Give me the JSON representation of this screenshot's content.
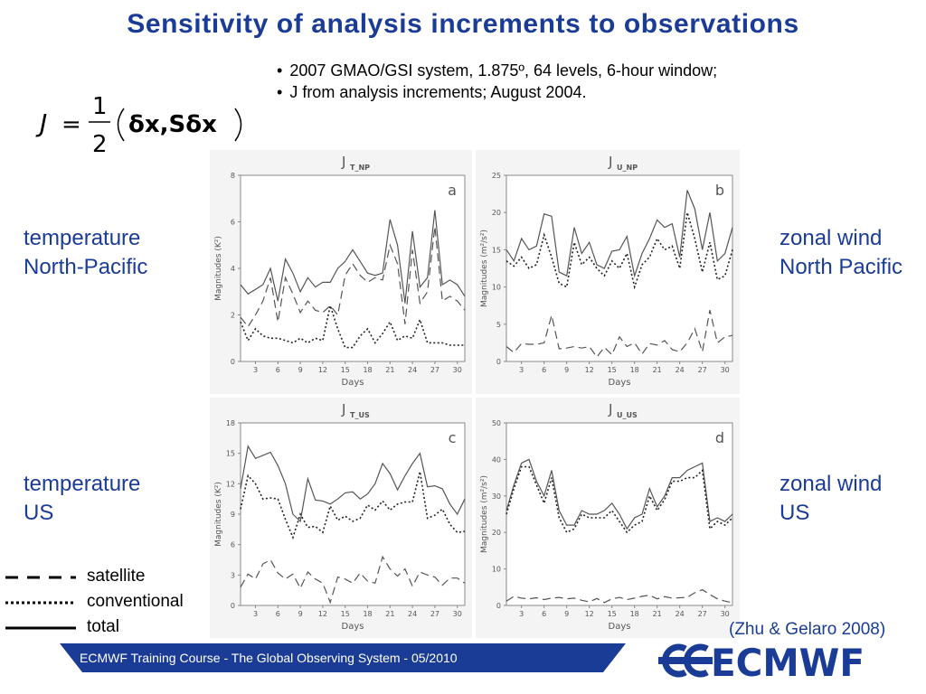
{
  "slide": {
    "title": "Sensitivity of analysis increments to observations",
    "bullets": [
      "2007 GMAO/GSI system, 1.875º, 64 levels, 6-hour window;",
      "J from analysis increments; August 2004."
    ],
    "formula": {
      "lhs": "J",
      "eq": "=",
      "num": "1",
      "den": "2",
      "body": "δx,Sδx"
    },
    "labels": {
      "temp_np": [
        "temperature",
        "North-Pacific"
      ],
      "wind_np": [
        "zonal wind",
        "North Pacific"
      ],
      "temp_us": [
        "temperature",
        "US"
      ],
      "wind_us": [
        "zonal wind",
        "US"
      ]
    },
    "legend": [
      "satellite",
      "conventional",
      "total"
    ],
    "citation": "(Zhu & Gelaro 2008)",
    "footer": "ECMWF Training Course - The Global Observing System - 05/2010",
    "logo_text": "ECMWF",
    "colors": {
      "accent": "#1a3c96",
      "plot_bg": "#f4f4f4",
      "line": "#555555"
    }
  },
  "chart_data": [
    {
      "type": "line",
      "panel": "a",
      "title": "J",
      "title_sub": "T_NP",
      "xlabel": "Days",
      "ylabel": "Magnitudes (K²)",
      "xlim": [
        1,
        31
      ],
      "ylim": [
        0,
        8
      ],
      "xticks": [
        3,
        6,
        9,
        12,
        15,
        18,
        21,
        24,
        27,
        30
      ],
      "yticks": [
        0,
        2,
        4,
        6,
        8
      ],
      "x": [
        1,
        2,
        3,
        4,
        5,
        6,
        7,
        8,
        9,
        10,
        11,
        12,
        13,
        14,
        15,
        16,
        17,
        18,
        19,
        20,
        21,
        22,
        23,
        24,
        25,
        26,
        27,
        28,
        29,
        30,
        31
      ],
      "series": [
        {
          "name": "total",
          "values": [
            3.3,
            2.9,
            3.1,
            3.3,
            4.0,
            2.6,
            4.4,
            3.8,
            3.0,
            3.6,
            3.2,
            3.4,
            3.4,
            4.0,
            4.3,
            4.8,
            4.3,
            3.8,
            3.7,
            3.8,
            6.1,
            5.0,
            2.5,
            5.6,
            3.2,
            3.6,
            6.5,
            3.3,
            3.5,
            3.3,
            2.8
          ]
        },
        {
          "name": "satellite",
          "values": [
            1.9,
            1.5,
            2.0,
            2.6,
            3.6,
            1.7,
            3.6,
            2.9,
            2.1,
            2.6,
            2.2,
            2.1,
            2.4,
            2.0,
            3.7,
            4.2,
            3.7,
            3.4,
            3.6,
            3.5,
            5.0,
            4.2,
            1.6,
            4.8,
            2.5,
            3.0,
            5.8,
            2.6,
            2.8,
            2.6,
            2.2
          ]
        },
        {
          "name": "conventional",
          "values": [
            1.7,
            0.9,
            1.4,
            1.1,
            1.0,
            1.0,
            0.9,
            0.8,
            1.0,
            0.8,
            1.0,
            0.9,
            2.4,
            1.4,
            0.6,
            0.6,
            1.1,
            1.4,
            0.8,
            1.2,
            1.7,
            0.9,
            1.1,
            1.0,
            1.8,
            0.8,
            0.8,
            0.8,
            0.7,
            0.7,
            0.7
          ]
        }
      ]
    },
    {
      "type": "line",
      "panel": "b",
      "title": "J",
      "title_sub": "U_NP",
      "xlabel": "Days",
      "ylabel": "Magnitudes (m²/s²)",
      "xlim": [
        1,
        31
      ],
      "ylim": [
        0,
        25
      ],
      "xticks": [
        3,
        6,
        9,
        12,
        15,
        18,
        21,
        24,
        27,
        30
      ],
      "yticks": [
        0,
        5,
        10,
        15,
        20,
        25
      ],
      "x": [
        1,
        2,
        3,
        4,
        5,
        6,
        7,
        8,
        9,
        10,
        11,
        12,
        13,
        14,
        15,
        16,
        17,
        18,
        19,
        20,
        21,
        22,
        23,
        24,
        25,
        26,
        27,
        28,
        29,
        30,
        31
      ],
      "series": [
        {
          "name": "total",
          "values": [
            15.0,
            13.5,
            16.5,
            15.0,
            15.5,
            19.8,
            19.5,
            12.0,
            11.5,
            18.0,
            14.5,
            16.0,
            13.0,
            12.5,
            14.8,
            15.0,
            16.8,
            11.5,
            14.5,
            16.5,
            19.0,
            18.0,
            18.5,
            14.0,
            23.0,
            20.5,
            15.0,
            20.0,
            13.5,
            14.5,
            18.0
          ]
        },
        {
          "name": "conventional",
          "values": [
            13.5,
            12.8,
            14.0,
            12.5,
            13.0,
            17.0,
            14.0,
            10.5,
            10.0,
            16.0,
            13.0,
            14.0,
            12.5,
            11.5,
            13.5,
            12.5,
            14.5,
            10.0,
            13.0,
            14.0,
            16.5,
            15.0,
            15.5,
            12.5,
            20.0,
            16.5,
            12.0,
            16.0,
            11.0,
            11.5,
            15.0
          ]
        },
        {
          "name": "satellite",
          "values": [
            2.0,
            1.2,
            2.4,
            2.3,
            2.3,
            2.5,
            6.2,
            1.7,
            1.8,
            2.0,
            1.8,
            2.0,
            0.6,
            1.9,
            0.9,
            3.3,
            2.0,
            2.5,
            1.0,
            2.4,
            2.2,
            2.8,
            1.6,
            1.3,
            2.5,
            4.4,
            1.3,
            6.9,
            2.5,
            3.3,
            3.5
          ]
        }
      ]
    },
    {
      "type": "line",
      "panel": "c",
      "title": "J",
      "title_sub": "T_US",
      "xlabel": "Days",
      "ylabel": "Magnitudes (K²)",
      "xlim": [
        1,
        31
      ],
      "ylim": [
        0,
        18
      ],
      "xticks": [
        3,
        6,
        9,
        12,
        15,
        18,
        21,
        24,
        27,
        30
      ],
      "yticks": [
        0,
        3,
        6,
        9,
        12,
        15,
        18
      ],
      "x": [
        1,
        2,
        3,
        4,
        5,
        6,
        7,
        8,
        9,
        10,
        11,
        12,
        13,
        14,
        15,
        16,
        17,
        18,
        19,
        20,
        21,
        22,
        23,
        24,
        25,
        26,
        27,
        28,
        29,
        30,
        31
      ],
      "series": [
        {
          "name": "total",
          "values": [
            11.5,
            15.7,
            14.5,
            14.8,
            15.1,
            13.8,
            12.0,
            9.0,
            8.3,
            12.5,
            10.4,
            10.3,
            10.0,
            10.5,
            11.1,
            11.2,
            10.5,
            11.0,
            12.0,
            14.0,
            13.0,
            11.4,
            12.8,
            14.0,
            15.0,
            11.7,
            11.8,
            11.5,
            10.0,
            9.0,
            10.5
          ]
        },
        {
          "name": "conventional",
          "values": [
            9.5,
            12.8,
            12.0,
            10.5,
            10.6,
            10.5,
            8.5,
            6.7,
            9.0,
            7.7,
            7.8,
            7.2,
            9.8,
            8.4,
            8.8,
            8.3,
            8.6,
            9.9,
            9.4,
            10.3,
            9.4,
            10.0,
            10.2,
            10.2,
            13.2,
            8.6,
            8.9,
            9.5,
            8.0,
            7.2,
            7.3
          ]
        },
        {
          "name": "satellite",
          "values": [
            1.8,
            3.1,
            2.6,
            4.1,
            4.5,
            3.2,
            2.6,
            3.1,
            1.7,
            3.3,
            2.6,
            2.2,
            0.3,
            2.8,
            2.6,
            2.2,
            3.2,
            2.4,
            2.2,
            4.8,
            3.6,
            2.9,
            3.6,
            1.9,
            3.3,
            3.0,
            2.8,
            2.0,
            2.7,
            2.7,
            2.2
          ]
        }
      ]
    },
    {
      "type": "line",
      "panel": "d",
      "title": "J",
      "title_sub": "U_US",
      "xlabel": "Days",
      "ylabel": "Magnitudes (m²/s²)",
      "xlim": [
        1,
        31
      ],
      "ylim": [
        0,
        50
      ],
      "xticks": [
        3,
        6,
        9,
        12,
        15,
        18,
        21,
        24,
        27,
        30
      ],
      "yticks": [
        0,
        10,
        20,
        30,
        40,
        50
      ],
      "x": [
        1,
        2,
        3,
        4,
        5,
        6,
        7,
        8,
        9,
        10,
        11,
        12,
        13,
        14,
        15,
        16,
        17,
        18,
        19,
        20,
        21,
        22,
        23,
        24,
        25,
        26,
        27,
        28,
        29,
        30,
        31
      ],
      "series": [
        {
          "name": "total",
          "values": [
            26,
            33,
            39,
            40,
            34,
            30,
            37,
            26,
            22,
            22,
            26,
            25,
            25,
            26,
            28,
            25,
            21,
            24,
            25,
            32,
            27,
            30,
            35,
            35,
            37,
            38,
            39,
            23,
            24,
            23,
            25
          ]
        },
        {
          "name": "conventional",
          "values": [
            25,
            32,
            38,
            38,
            33,
            28,
            35,
            24,
            20,
            21,
            25,
            24,
            24,
            24,
            26,
            23,
            20,
            22,
            23,
            30,
            26,
            29,
            34,
            34,
            35,
            35,
            37,
            21,
            23,
            22,
            24
          ]
        },
        {
          "name": "satellite",
          "values": [
            1.2,
            2.5,
            2.0,
            1.8,
            2.1,
            1.6,
            2.0,
            2.2,
            1.8,
            2.0,
            1.4,
            1.0,
            1.9,
            0.8,
            1.8,
            2.2,
            1.6,
            2.0,
            2.5,
            2.8,
            1.8,
            2.4,
            2.0,
            2.1,
            2.2,
            3.5,
            4.3,
            3.0,
            1.8,
            1.2,
            0.8
          ]
        }
      ]
    }
  ]
}
